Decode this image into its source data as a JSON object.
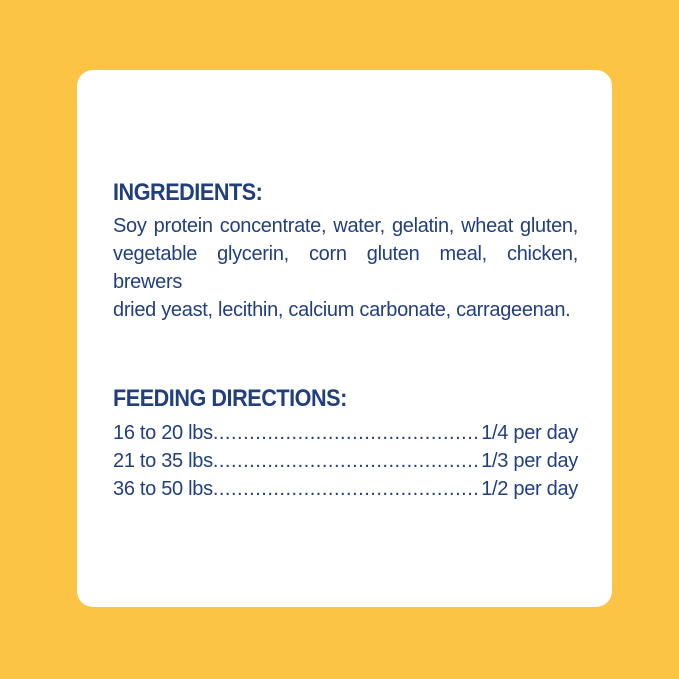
{
  "colors": {
    "background": "#FCC445",
    "card": "#FFFFFF",
    "text": "#223F7D"
  },
  "label": {
    "ingredients": {
      "heading": "INGREDIENTS:",
      "body_lines": [
        "Soy protein concentrate, water, gelatin, wheat gluten,",
        "vegetable glycerin, corn gluten meal, chicken, brewers",
        "dried yeast, lecithin, calcium carbonate, carrageenan."
      ]
    },
    "feeding": {
      "heading": "FEEDING DIRECTIONS:",
      "leader": "...................................................................................................",
      "rows": [
        {
          "range": "16 to 20 lbs",
          "amount": "1/4 per day"
        },
        {
          "range": "21 to 35 lbs",
          "amount": "1/3 per day"
        },
        {
          "range": "36 to 50 lbs",
          "amount": "1/2 per day"
        }
      ]
    }
  }
}
